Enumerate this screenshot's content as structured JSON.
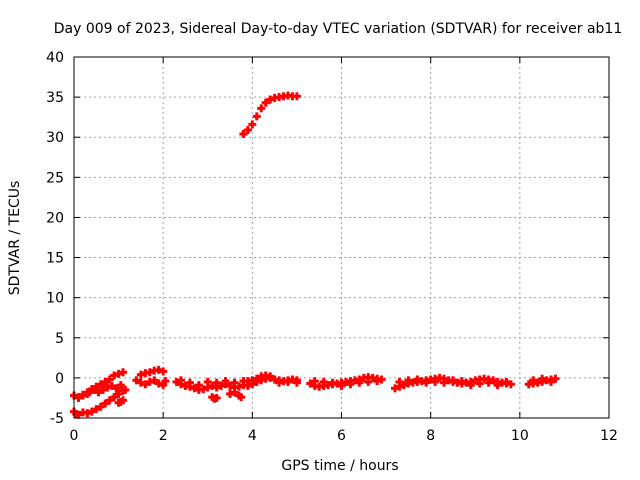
{
  "chart_data": {
    "type": "scatter",
    "title": "Day 009 of 2023, Sidereal Day-to-day VTEC variation (SDTVAR) for receiver ab11",
    "xlabel": "GPS time / hours",
    "ylabel": "SDTVAR / TECUs",
    "xlim": [
      0,
      12
    ],
    "ylim": [
      -5,
      40
    ],
    "xticks": [
      "0",
      "2",
      "4",
      "6",
      "8",
      "10",
      "12"
    ],
    "yticks": [
      "-5",
      "0",
      "5",
      "10",
      "15",
      "20",
      "25",
      "30",
      "35",
      "40"
    ],
    "grid": true,
    "marker_color": "#ff0000",
    "series": [
      {
        "points": [
          [
            3.8,
            30.4
          ],
          [
            3.9,
            30.9
          ],
          [
            4.0,
            31.6
          ],
          [
            4.1,
            32.6
          ],
          [
            4.2,
            33.6
          ],
          [
            4.3,
            34.3
          ],
          [
            4.4,
            34.7
          ],
          [
            4.5,
            34.9
          ],
          [
            4.6,
            35.0
          ],
          [
            4.7,
            35.1
          ],
          [
            4.8,
            35.2
          ],
          [
            4.9,
            35.1
          ],
          [
            5.0,
            35.1
          ],
          [
            0.0,
            -4.2
          ],
          [
            0.05,
            -4.5
          ],
          [
            0.1,
            -4.6
          ],
          [
            0.2,
            -4.3
          ],
          [
            0.3,
            -4.4
          ],
          [
            0.4,
            -4.2
          ],
          [
            0.5,
            -3.9
          ],
          [
            0.6,
            -3.6
          ],
          [
            0.7,
            -3.2
          ],
          [
            0.8,
            -2.8
          ],
          [
            0.9,
            -2.4
          ],
          [
            1.0,
            -2.0
          ],
          [
            1.1,
            -1.6
          ],
          [
            1.15,
            -1.5
          ],
          [
            0.0,
            -2.2
          ],
          [
            0.1,
            -2.4
          ],
          [
            0.2,
            -2.1
          ],
          [
            0.3,
            -1.8
          ],
          [
            0.4,
            -1.4
          ],
          [
            0.5,
            -1.1
          ],
          [
            0.6,
            -0.8
          ],
          [
            0.7,
            -0.5
          ],
          [
            0.8,
            -0.2
          ],
          [
            0.9,
            0.3
          ],
          [
            1.0,
            0.5
          ],
          [
            1.1,
            0.7
          ],
          [
            0.1,
            -2.5
          ],
          [
            0.2,
            -2.2
          ],
          [
            0.3,
            -2.0
          ],
          [
            0.35,
            -1.8
          ],
          [
            0.45,
            -1.5
          ],
          [
            0.55,
            -1.8
          ],
          [
            0.65,
            -1.5
          ],
          [
            0.75,
            -1.2
          ],
          [
            0.85,
            -1.0
          ],
          [
            0.95,
            -1.3
          ],
          [
            1.05,
            -0.9
          ],
          [
            1.0,
            -3.1
          ],
          [
            1.05,
            -3.0
          ],
          [
            1.1,
            -2.8
          ],
          [
            1.4,
            -0.3
          ],
          [
            1.5,
            0.4
          ],
          [
            1.6,
            0.6
          ],
          [
            1.7,
            0.7
          ],
          [
            1.8,
            0.9
          ],
          [
            1.9,
            1.0
          ],
          [
            2.0,
            0.8
          ],
          [
            1.5,
            -0.6
          ],
          [
            1.6,
            -0.8
          ],
          [
            1.7,
            -0.5
          ],
          [
            1.8,
            -0.3
          ],
          [
            1.9,
            -0.7
          ],
          [
            2.0,
            -0.9
          ],
          [
            2.05,
            -0.4
          ],
          [
            2.3,
            -0.5
          ],
          [
            2.4,
            -0.8
          ],
          [
            2.5,
            -1.0
          ],
          [
            2.6,
            -1.1
          ],
          [
            2.7,
            -1.3
          ],
          [
            2.8,
            -1.5
          ],
          [
            2.9,
            -1.4
          ],
          [
            3.0,
            -1.2
          ],
          [
            3.1,
            -1.0
          ],
          [
            3.2,
            -1.2
          ],
          [
            3.3,
            -1.0
          ],
          [
            3.4,
            -0.8
          ],
          [
            3.5,
            -1.0
          ],
          [
            3.6,
            -1.2
          ],
          [
            3.7,
            -1.1
          ],
          [
            3.8,
            -0.9
          ],
          [
            2.4,
            -0.3
          ],
          [
            2.6,
            -0.6
          ],
          [
            2.8,
            -0.9
          ],
          [
            3.0,
            -0.5
          ],
          [
            3.2,
            -0.6
          ],
          [
            3.4,
            -0.4
          ],
          [
            3.6,
            -0.6
          ],
          [
            3.8,
            -0.4
          ],
          [
            3.1,
            -2.4
          ],
          [
            3.15,
            -2.6
          ],
          [
            3.2,
            -2.5
          ],
          [
            3.5,
            -2.0
          ],
          [
            3.6,
            -1.8
          ],
          [
            3.7,
            -2.2
          ],
          [
            3.75,
            -2.4
          ],
          [
            3.9,
            -1.0
          ],
          [
            4.0,
            -0.8
          ],
          [
            4.1,
            -0.5
          ],
          [
            4.2,
            -0.3
          ],
          [
            4.3,
            -0.1
          ],
          [
            4.4,
            0.0
          ],
          [
            4.5,
            -0.2
          ],
          [
            4.6,
            -0.3
          ],
          [
            4.7,
            -0.4
          ],
          [
            4.8,
            -0.3
          ],
          [
            4.9,
            -0.2
          ],
          [
            5.0,
            -0.3
          ],
          [
            3.9,
            -0.4
          ],
          [
            4.0,
            -0.3
          ],
          [
            4.1,
            -0.1
          ],
          [
            4.2,
            0.2
          ],
          [
            4.3,
            0.3
          ],
          [
            4.4,
            0.2
          ],
          [
            4.6,
            -0.6
          ],
          [
            4.8,
            -0.5
          ],
          [
            5.0,
            -0.6
          ],
          [
            5.3,
            -0.7
          ],
          [
            5.4,
            -1.0
          ],
          [
            5.5,
            -1.1
          ],
          [
            5.6,
            -1.0
          ],
          [
            5.7,
            -0.9
          ],
          [
            5.8,
            -0.8
          ],
          [
            5.9,
            -0.7
          ],
          [
            6.0,
            -0.6
          ],
          [
            6.1,
            -0.5
          ],
          [
            6.2,
            -0.4
          ],
          [
            6.3,
            -0.3
          ],
          [
            6.4,
            -0.2
          ],
          [
            6.5,
            0.0
          ],
          [
            6.6,
            0.1
          ],
          [
            6.7,
            0.0
          ],
          [
            6.8,
            -0.1
          ],
          [
            6.9,
            -0.2
          ],
          [
            5.4,
            -0.4
          ],
          [
            5.6,
            -0.5
          ],
          [
            5.8,
            -0.6
          ],
          [
            6.0,
            -1.0
          ],
          [
            6.2,
            -0.8
          ],
          [
            6.4,
            -0.6
          ],
          [
            6.6,
            -0.5
          ],
          [
            6.8,
            -0.4
          ],
          [
            7.2,
            -1.3
          ],
          [
            7.3,
            -1.1
          ],
          [
            7.4,
            -0.9
          ],
          [
            7.5,
            -0.7
          ],
          [
            7.6,
            -0.6
          ],
          [
            7.7,
            -0.5
          ],
          [
            7.8,
            -0.4
          ],
          [
            7.9,
            -0.3
          ],
          [
            8.0,
            -0.2
          ],
          [
            8.1,
            -0.1
          ],
          [
            8.2,
            0.0
          ],
          [
            8.3,
            -0.1
          ],
          [
            8.4,
            -0.3
          ],
          [
            8.5,
            -0.5
          ],
          [
            8.6,
            -0.6
          ],
          [
            8.7,
            -0.7
          ],
          [
            8.8,
            -0.6
          ],
          [
            8.9,
            -0.5
          ],
          [
            9.0,
            -0.3
          ],
          [
            9.1,
            -0.2
          ],
          [
            9.2,
            -0.1
          ],
          [
            9.3,
            -0.2
          ],
          [
            9.4,
            -0.3
          ],
          [
            9.5,
            -0.5
          ],
          [
            9.6,
            -0.6
          ],
          [
            9.7,
            -0.7
          ],
          [
            9.8,
            -0.8
          ],
          [
            7.3,
            -0.5
          ],
          [
            7.5,
            -0.3
          ],
          [
            7.7,
            -0.2
          ],
          [
            7.9,
            -0.6
          ],
          [
            8.1,
            -0.5
          ],
          [
            8.3,
            -0.6
          ],
          [
            8.5,
            -0.3
          ],
          [
            8.7,
            -0.4
          ],
          [
            8.9,
            -0.9
          ],
          [
            9.1,
            -0.7
          ],
          [
            9.3,
            -0.6
          ],
          [
            9.5,
            -0.9
          ],
          [
            9.7,
            -0.5
          ],
          [
            10.2,
            -0.8
          ],
          [
            10.3,
            -0.7
          ],
          [
            10.4,
            -0.6
          ],
          [
            10.5,
            -0.5
          ],
          [
            10.6,
            -0.3
          ],
          [
            10.7,
            -0.2
          ],
          [
            10.8,
            -0.1
          ],
          [
            10.3,
            -0.3
          ],
          [
            10.5,
            -0.1
          ],
          [
            10.7,
            -0.5
          ]
        ]
      }
    ]
  }
}
